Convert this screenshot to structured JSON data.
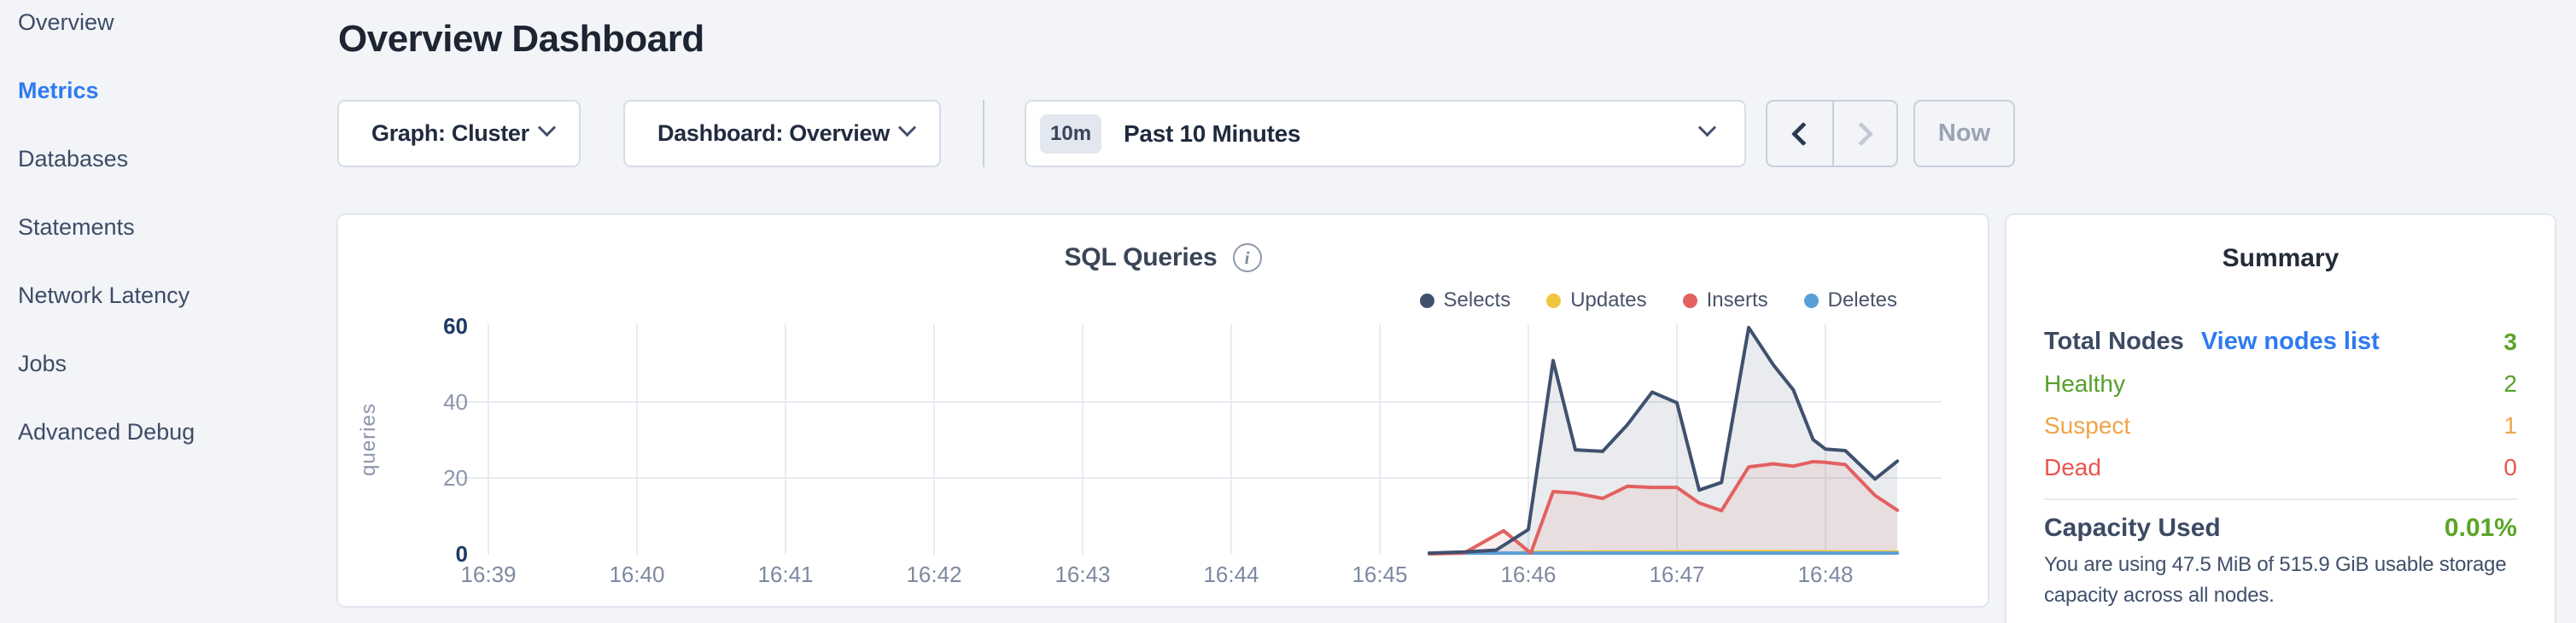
{
  "sidebar": {
    "items": [
      {
        "label": "Overview",
        "active": false
      },
      {
        "label": "Metrics",
        "active": true
      },
      {
        "label": "Databases",
        "active": false
      },
      {
        "label": "Statements",
        "active": false
      },
      {
        "label": "Network Latency",
        "active": false
      },
      {
        "label": "Jobs",
        "active": false
      },
      {
        "label": "Advanced Debug",
        "active": false
      }
    ]
  },
  "header": {
    "title": "Overview Dashboard"
  },
  "controls": {
    "graph_dropdown": {
      "label": "Graph: Cluster"
    },
    "dashboard_dropdown": {
      "label": "Dashboard: Overview"
    },
    "time_picker": {
      "badge": "10m",
      "label": "Past 10 Minutes"
    },
    "now_button_label": "Now"
  },
  "chart_card": {
    "title": "SQL Queries",
    "info_icon_glyph": "i"
  },
  "chart_data": {
    "type": "area",
    "title": "SQL Queries",
    "ylabel": "queries",
    "ylim": [
      0,
      60
    ],
    "y_ticks": [
      0,
      20,
      40,
      60
    ],
    "x_ticks": [
      "16:39",
      "16:40",
      "16:41",
      "16:42",
      "16:43",
      "16:44",
      "16:45",
      "16:46",
      "16:47",
      "16:48"
    ],
    "grid": true,
    "legend_position": "top-right",
    "series": [
      {
        "name": "Selects",
        "color": "#3f516e",
        "fill": "rgba(71,88,118,0.12)",
        "points": [
          [
            "16:45:20",
            0.2
          ],
          [
            "16:45:34",
            0.5
          ],
          [
            "16:45:47",
            1.0
          ],
          [
            "16:46:00",
            6.4
          ],
          [
            "16:46:10",
            50.9
          ],
          [
            "16:46:19",
            27.4
          ],
          [
            "16:46:30",
            27.0
          ],
          [
            "16:46:40",
            34.0
          ],
          [
            "16:46:50",
            42.6
          ],
          [
            "16:47:00",
            39.8
          ],
          [
            "16:47:09",
            16.8
          ],
          [
            "16:47:18",
            18.8
          ],
          [
            "16:47:29",
            59.6
          ],
          [
            "16:47:39",
            49.7
          ],
          [
            "16:47:47",
            43.2
          ],
          [
            "16:47:55",
            30.1
          ],
          [
            "16:48:00",
            27.6
          ],
          [
            "16:48:08",
            27.2
          ],
          [
            "16:48:20",
            19.7
          ],
          [
            "16:48:29",
            24.4
          ]
        ]
      },
      {
        "name": "Updates",
        "color": "#f0c53f",
        "fill": "none",
        "points": [
          [
            "16:45:58",
            0.4
          ],
          [
            "16:46:30",
            0.5
          ],
          [
            "16:47:30",
            0.6
          ],
          [
            "16:48:29",
            0.5
          ]
        ]
      },
      {
        "name": "Inserts",
        "color": "#e36060",
        "fill": "rgba(227,96,96,0.10)",
        "points": [
          [
            "16:45:20",
            0.0
          ],
          [
            "16:45:34",
            0.2
          ],
          [
            "16:45:50",
            6.1
          ],
          [
            "16:46:01",
            0.2
          ],
          [
            "16:46:10",
            16.4
          ],
          [
            "16:46:19",
            16.0
          ],
          [
            "16:46:30",
            14.6
          ],
          [
            "16:46:40",
            17.8
          ],
          [
            "16:46:50",
            17.5
          ],
          [
            "16:47:00",
            17.5
          ],
          [
            "16:47:09",
            13.4
          ],
          [
            "16:47:18",
            11.4
          ],
          [
            "16:47:29",
            22.9
          ],
          [
            "16:47:39",
            23.7
          ],
          [
            "16:47:47",
            23.1
          ],
          [
            "16:47:55",
            24.3
          ],
          [
            "16:48:00",
            24.1
          ],
          [
            "16:48:08",
            23.5
          ],
          [
            "16:48:20",
            15.4
          ],
          [
            "16:48:29",
            11.5
          ]
        ]
      },
      {
        "name": "Deletes",
        "color": "#5a9fd8",
        "fill": "none",
        "points": [
          [
            "16:45:20",
            0.2
          ],
          [
            "16:46:30",
            0.2
          ],
          [
            "16:47:30",
            0.2
          ],
          [
            "16:48:29",
            0.2
          ]
        ]
      }
    ]
  },
  "summary": {
    "title": "Summary",
    "total": {
      "label": "Total Nodes",
      "link_label": "View nodes list",
      "value": "3",
      "value_color": "#5aa427"
    },
    "statuses": [
      {
        "label": "Healthy",
        "value": "2",
        "color": "#55a02a"
      },
      {
        "label": "Suspect",
        "value": "1",
        "color": "#f0a44b"
      },
      {
        "label": "Dead",
        "value": "0",
        "color": "#e8554e"
      }
    ],
    "capacity": {
      "label": "Capacity Used",
      "value": "0.01%",
      "value_color": "#5aa427",
      "description": "You are using 47.5 MiB of 515.9 GiB usable storage capacity across all nodes."
    }
  },
  "colors": {
    "accent_blue": "#2f7af2",
    "link_blue": "#2e7af0",
    "healthy_green": "#5aa427",
    "suspect_orange": "#f0a44b",
    "dead_red": "#e8554e",
    "page_background": "#f2f4f8"
  }
}
